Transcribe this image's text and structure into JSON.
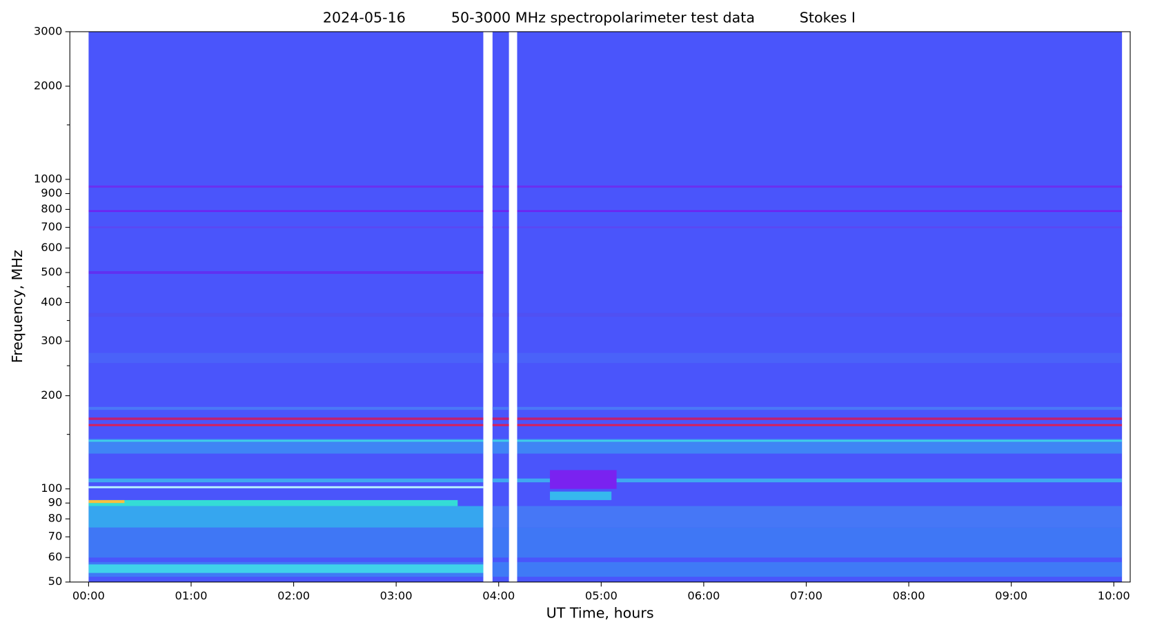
{
  "chart_data": {
    "type": "spectrogram",
    "title": [
      "2024-05-16",
      "50-3000 MHz spectropolarimeter test data",
      "Stokes I"
    ],
    "xlabel": "UT Time, hours",
    "ylabel": "Frequency, MHz",
    "xlim": [
      -0.183,
      10.16
    ],
    "xticks": [
      {
        "value": 0,
        "label": "00:00"
      },
      {
        "value": 1,
        "label": "01:00"
      },
      {
        "value": 2,
        "label": "02:00"
      },
      {
        "value": 3,
        "label": "03:00"
      },
      {
        "value": 4,
        "label": "04:00"
      },
      {
        "value": 5,
        "label": "05:00"
      },
      {
        "value": 6,
        "label": "06:00"
      },
      {
        "value": 7,
        "label": "07:00"
      },
      {
        "value": 8,
        "label": "08:00"
      },
      {
        "value": 9,
        "label": "09:00"
      },
      {
        "value": 10,
        "label": "10:00"
      }
    ],
    "ylim": [
      50,
      3000
    ],
    "ylog": true,
    "yticks": [
      50,
      60,
      70,
      80,
      90,
      100,
      200,
      300,
      400,
      500,
      600,
      700,
      800,
      900,
      1000,
      2000,
      3000
    ],
    "yminorticks": [
      150,
      250,
      350,
      450,
      1500
    ],
    "background": "#4a55fb",
    "data_segments": [
      [
        0,
        3.85
      ],
      [
        3.94,
        4.1
      ],
      [
        4.18,
        10.08
      ]
    ],
    "bands": [
      {
        "low": 52,
        "high": 58,
        "start": 0,
        "end": 10.08,
        "color": "#3f7af6"
      },
      {
        "low": 53.5,
        "high": 57,
        "start": 0,
        "end": 3.85,
        "color": "#3fd2ea"
      },
      {
        "low": 60,
        "high": 75,
        "start": 0,
        "end": 10.08,
        "color": "#3f77f5"
      },
      {
        "low": 75,
        "high": 88,
        "start": 0,
        "end": 3.85,
        "color": "#36a6ef"
      },
      {
        "low": 75,
        "high": 88,
        "start": 3.94,
        "end": 10.08,
        "color": "#4677f6"
      },
      {
        "low": 88,
        "high": 92,
        "start": 0,
        "end": 3.6,
        "color": "#34dcd6"
      },
      {
        "low": 90,
        "high": 92,
        "start": 0,
        "end": 0.35,
        "color": "#f6c040"
      },
      {
        "low": 100.5,
        "high": 102,
        "start": 0,
        "end": 3.85,
        "color": "#b8f4ff"
      },
      {
        "low": 105,
        "high": 108,
        "start": 0,
        "end": 10.08,
        "color": "#3fa8f0"
      },
      {
        "low": 100,
        "high": 115,
        "start": 4.5,
        "end": 5.15,
        "color": "#7a22f0"
      },
      {
        "low": 92,
        "high": 98,
        "start": 4.5,
        "end": 5.1,
        "color": "#36b8ee"
      },
      {
        "low": 130,
        "high": 145,
        "start": 0,
        "end": 10.08,
        "color": "#3f85f5"
      },
      {
        "low": 142,
        "high": 144,
        "start": 0,
        "end": 10.08,
        "color": "#3fd0e8"
      },
      {
        "low": 159.5,
        "high": 162,
        "start": 0,
        "end": 10.08,
        "color": "#d8205a"
      },
      {
        "low": 167,
        "high": 170,
        "start": 0,
        "end": 10.08,
        "color": "#c02070"
      },
      {
        "low": 180,
        "high": 184,
        "start": 0,
        "end": 10.08,
        "color": "#4a78f7"
      },
      {
        "low": 255,
        "high": 275,
        "start": 0,
        "end": 10.08,
        "color": "#4a62f9"
      },
      {
        "low": 360,
        "high": 370,
        "start": 0,
        "end": 10.08,
        "color": "#5050f2"
      },
      {
        "low": 495,
        "high": 505,
        "start": 0,
        "end": 3.85,
        "color": "#6030f0"
      },
      {
        "low": 695,
        "high": 705,
        "start": 0,
        "end": 10.08,
        "color": "#5a48f3"
      },
      {
        "low": 785,
        "high": 795,
        "start": 0,
        "end": 10.08,
        "color": "#7020f0"
      },
      {
        "low": 940,
        "high": 955,
        "start": 0,
        "end": 10.08,
        "color": "#6a30f0"
      }
    ]
  }
}
